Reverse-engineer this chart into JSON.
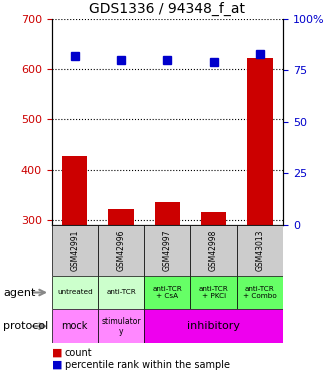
{
  "title": "GDS1336 / 94348_f_at",
  "samples": [
    "GSM42991",
    "GSM42996",
    "GSM42997",
    "GSM42998",
    "GSM43013"
  ],
  "counts": [
    428,
    322,
    335,
    316,
    622
  ],
  "percentiles": [
    82,
    80,
    80,
    79,
    83
  ],
  "ylim_left": [
    290,
    700
  ],
  "ylim_right": [
    0,
    100
  ],
  "yticks_left": [
    300,
    400,
    500,
    600,
    700
  ],
  "yticks_right": [
    0,
    25,
    50,
    75,
    100
  ],
  "ytick_right_labels": [
    "0",
    "25",
    "50",
    "75",
    "100%"
  ],
  "agent_labels": [
    "untreated",
    "anti-TCR",
    "anti-TCR\n+ CsA",
    "anti-TCR\n+ PKCi",
    "anti-TCR\n+ Combo"
  ],
  "agent_colors": [
    "#ccffcc",
    "#ccffcc",
    "#66ff66",
    "#66ff66",
    "#66ff66"
  ],
  "bar_color": "#cc0000",
  "dot_color": "#0000cc",
  "left_axis_color": "#cc0000",
  "right_axis_color": "#0000cc",
  "sample_bg_color": "#cccccc",
  "grid_color": "black",
  "protocol_mock_color": "#ff88ff",
  "protocol_stimulatory_color": "#ff88ff",
  "protocol_inhibitory_color": "#ee00ee"
}
